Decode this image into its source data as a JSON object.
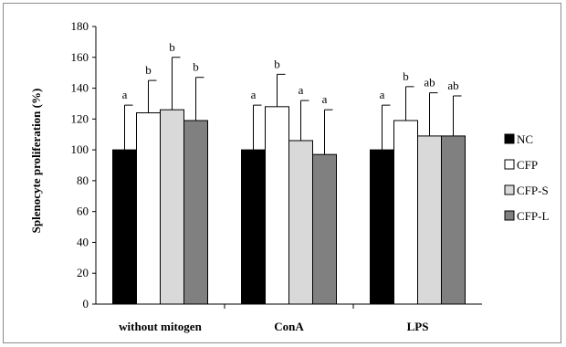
{
  "chart_data": {
    "type": "bar",
    "title": "",
    "xlabel": "",
    "ylabel": "Splenocyte proliferation (%)",
    "ylim": [
      0,
      180
    ],
    "yticks": [
      0,
      20,
      40,
      60,
      80,
      100,
      120,
      140,
      160,
      180
    ],
    "categories": [
      "without mitogen",
      "ConA",
      "LPS"
    ],
    "series": [
      {
        "name": "NC",
        "color": "#000000",
        "values": [
          100,
          100,
          100
        ],
        "errors": [
          29,
          29,
          29
        ],
        "labels": [
          "a",
          "a",
          "a"
        ]
      },
      {
        "name": "CFP",
        "color": "#ffffff",
        "values": [
          124,
          128,
          119
        ],
        "errors": [
          21,
          21,
          22
        ],
        "labels": [
          "b",
          "b",
          "b"
        ]
      },
      {
        "name": "CFP-S",
        "color": "#d9d9d9",
        "values": [
          126,
          106,
          109
        ],
        "errors": [
          34,
          26,
          28
        ],
        "labels": [
          "b",
          "a",
          "ab"
        ]
      },
      {
        "name": "CFP-L",
        "color": "#808080",
        "values": [
          119,
          97,
          109
        ],
        "errors": [
          28,
          29,
          26
        ],
        "labels": [
          "b",
          "a",
          "ab"
        ]
      }
    ],
    "grid": false,
    "legend": "right"
  }
}
